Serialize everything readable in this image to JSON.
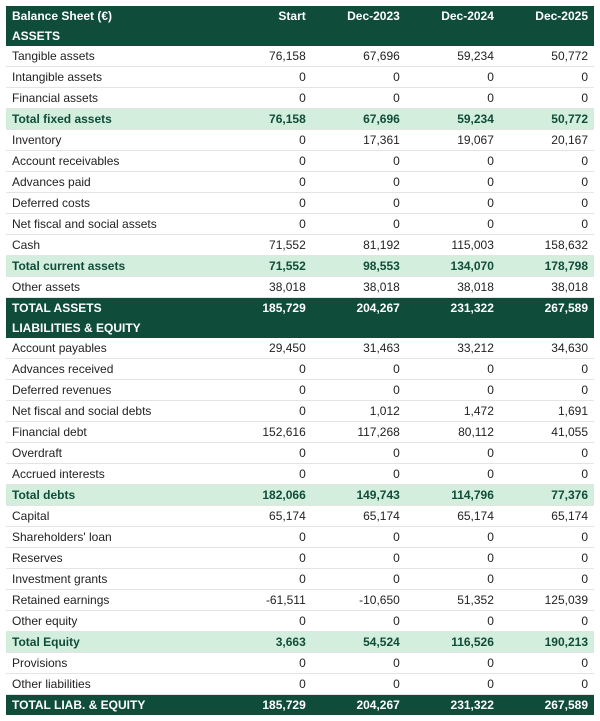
{
  "colors": {
    "header_bg": "#0f4d3a",
    "header_fg": "#ffffff",
    "subtotal_bg": "#d4eedd",
    "subtotal_fg": "#0f4d3a",
    "row_border": "#e4e4e4",
    "text": "#222222",
    "page_bg": "#ffffff"
  },
  "typography": {
    "font_family": "Segoe UI / Arial",
    "font_size_pt": 9
  },
  "table": {
    "title": "Balance Sheet (€)",
    "columns": [
      "Start",
      "Dec-2023",
      "Dec-2024",
      "Dec-2025"
    ],
    "col_widths_pct": [
      36,
      16,
      16,
      16,
      16
    ],
    "rows": [
      {
        "type": "section",
        "label": "ASSETS"
      },
      {
        "type": "line",
        "label": "Tangible assets",
        "values": [
          "76,158",
          "67,696",
          "59,234",
          "50,772"
        ]
      },
      {
        "type": "line",
        "label": "Intangible assets",
        "values": [
          "0",
          "0",
          "0",
          "0"
        ]
      },
      {
        "type": "line",
        "label": "Financial assets",
        "values": [
          "0",
          "0",
          "0",
          "0"
        ]
      },
      {
        "type": "sub",
        "label": "Total fixed assets",
        "values": [
          "76,158",
          "67,696",
          "59,234",
          "50,772"
        ]
      },
      {
        "type": "line",
        "label": "Inventory",
        "values": [
          "0",
          "17,361",
          "19,067",
          "20,167"
        ]
      },
      {
        "type": "line",
        "label": "Account receivables",
        "values": [
          "0",
          "0",
          "0",
          "0"
        ]
      },
      {
        "type": "line",
        "label": "Advances paid",
        "values": [
          "0",
          "0",
          "0",
          "0"
        ]
      },
      {
        "type": "line",
        "label": "Deferred costs",
        "values": [
          "0",
          "0",
          "0",
          "0"
        ]
      },
      {
        "type": "line",
        "label": "Net fiscal and social assets",
        "values": [
          "0",
          "0",
          "0",
          "0"
        ]
      },
      {
        "type": "line",
        "label": "Cash",
        "values": [
          "71,552",
          "81,192",
          "115,003",
          "158,632"
        ]
      },
      {
        "type": "sub",
        "label": "Total current assets",
        "values": [
          "71,552",
          "98,553",
          "134,070",
          "178,798"
        ]
      },
      {
        "type": "line",
        "label": "Other assets",
        "values": [
          "38,018",
          "38,018",
          "38,018",
          "38,018"
        ]
      },
      {
        "type": "tot",
        "label": "TOTAL ASSETS",
        "values": [
          "185,729",
          "204,267",
          "231,322",
          "267,589"
        ]
      },
      {
        "type": "section",
        "label": "LIABILITIES & EQUITY"
      },
      {
        "type": "line",
        "label": "Account payables",
        "values": [
          "29,450",
          "31,463",
          "33,212",
          "34,630"
        ]
      },
      {
        "type": "line",
        "label": "Advances received",
        "values": [
          "0",
          "0",
          "0",
          "0"
        ]
      },
      {
        "type": "line",
        "label": "Deferred revenues",
        "values": [
          "0",
          "0",
          "0",
          "0"
        ]
      },
      {
        "type": "line",
        "label": "Net fiscal and social debts",
        "values": [
          "0",
          "1,012",
          "1,472",
          "1,691"
        ]
      },
      {
        "type": "line",
        "label": "Financial debt",
        "values": [
          "152,616",
          "117,268",
          "80,112",
          "41,055"
        ]
      },
      {
        "type": "line",
        "label": "Overdraft",
        "values": [
          "0",
          "0",
          "0",
          "0"
        ]
      },
      {
        "type": "line",
        "label": "Accrued interests",
        "values": [
          "0",
          "0",
          "0",
          "0"
        ]
      },
      {
        "type": "sub",
        "label": "Total debts",
        "values": [
          "182,066",
          "149,743",
          "114,796",
          "77,376"
        ]
      },
      {
        "type": "line",
        "label": "Capital",
        "values": [
          "65,174",
          "65,174",
          "65,174",
          "65,174"
        ]
      },
      {
        "type": "line",
        "label": "Shareholders' loan",
        "values": [
          "0",
          "0",
          "0",
          "0"
        ]
      },
      {
        "type": "line",
        "label": "Reserves",
        "values": [
          "0",
          "0",
          "0",
          "0"
        ]
      },
      {
        "type": "line",
        "label": "Investment grants",
        "values": [
          "0",
          "0",
          "0",
          "0"
        ]
      },
      {
        "type": "line",
        "label": "Retained earnings",
        "values": [
          "-61,511",
          "-10,650",
          "51,352",
          "125,039"
        ]
      },
      {
        "type": "line",
        "label": "Other equity",
        "values": [
          "0",
          "0",
          "0",
          "0"
        ]
      },
      {
        "type": "sub",
        "label": "Total Equity",
        "values": [
          "3,663",
          "54,524",
          "116,526",
          "190,213"
        ]
      },
      {
        "type": "line",
        "label": "Provisions",
        "values": [
          "0",
          "0",
          "0",
          "0"
        ]
      },
      {
        "type": "line",
        "label": "Other liabilities",
        "values": [
          "0",
          "0",
          "0",
          "0"
        ]
      },
      {
        "type": "tot",
        "label": "TOTAL LIAB. & EQUITY",
        "values": [
          "185,729",
          "204,267",
          "231,322",
          "267,589"
        ]
      }
    ]
  }
}
